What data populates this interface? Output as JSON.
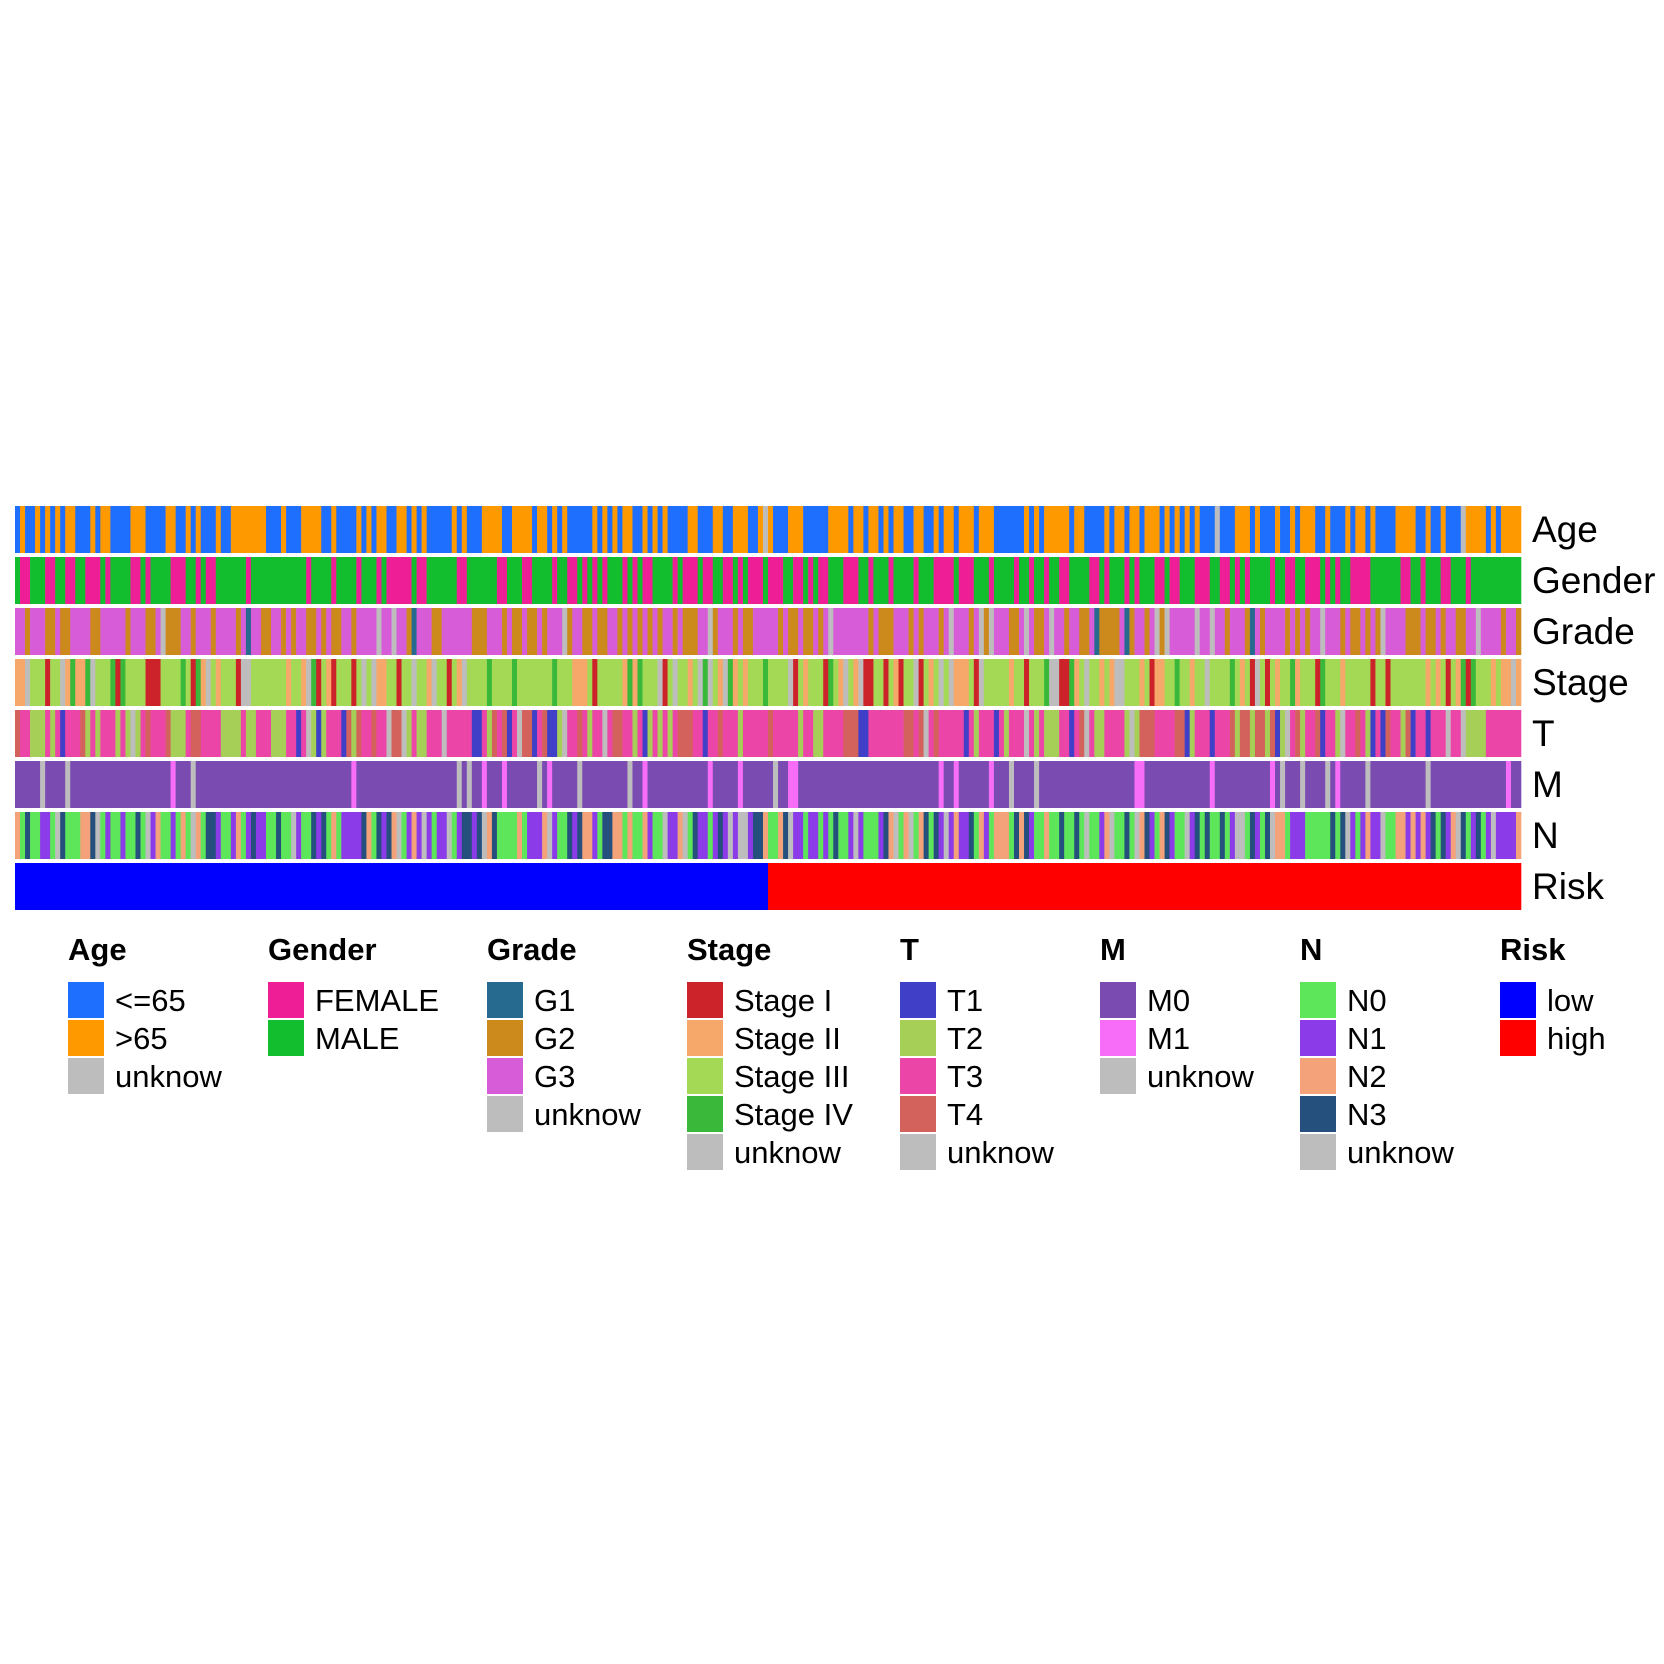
{
  "chart_data": {
    "type": "heatmap",
    "title": "",
    "n_samples": 300,
    "risk_split": {
      "low_count": 150,
      "high_count": 150
    },
    "tracks": [
      {
        "name": "Age",
        "levels": [
          "<=65",
          ">65",
          "unknow"
        ],
        "colors": [
          "#1f6fff",
          "#ff9900",
          "#bdbdbd"
        ],
        "weights": [
          0.5,
          0.49,
          0.01
        ]
      },
      {
        "name": "Gender",
        "levels": [
          "FEMALE",
          "MALE"
        ],
        "colors": [
          "#ee1f96",
          "#13be2e"
        ],
        "weights": [
          0.35,
          0.65
        ]
      },
      {
        "name": "Grade",
        "levels": [
          "G1",
          "G2",
          "G3",
          "unknow"
        ],
        "colors": [
          "#276a8f",
          "#cc8a1c",
          "#d75cd8",
          "#bdbdbd"
        ],
        "weights": [
          0.03,
          0.33,
          0.6,
          0.04
        ]
      },
      {
        "name": "Stage",
        "levels": [
          "Stage I",
          "Stage II",
          "Stage III",
          "Stage IV",
          "unknow"
        ],
        "colors": [
          "#cc2229",
          "#f5a86a",
          "#a4d955",
          "#3ab83a",
          "#bdbdbd"
        ],
        "weights": [
          0.12,
          0.15,
          0.55,
          0.08,
          0.1
        ]
      },
      {
        "name": "T",
        "levels": [
          "T1",
          "T2",
          "T3",
          "T4",
          "unknow"
        ],
        "colors": [
          "#3f3fc8",
          "#a5cf56",
          "#ec45a8",
          "#d4625c",
          "#bdbdbd"
        ],
        "weights": [
          0.06,
          0.18,
          0.55,
          0.16,
          0.05
        ]
      },
      {
        "name": "M",
        "levels": [
          "M0",
          "M1",
          "unknow"
        ],
        "colors": [
          "#7a4bb1",
          "#f76df7",
          "#bdbdbd"
        ],
        "weights": [
          0.88,
          0.05,
          0.07
        ]
      },
      {
        "name": "N",
        "levels": [
          "N0",
          "N1",
          "N2",
          "N3",
          "unknow"
        ],
        "colors": [
          "#5de659",
          "#8c3be8",
          "#f4a27a",
          "#25507e",
          "#bdbdbd"
        ],
        "weights": [
          0.35,
          0.25,
          0.15,
          0.15,
          0.1
        ]
      },
      {
        "name": "Risk",
        "levels": [
          "low",
          "high"
        ],
        "colors": [
          "#0000ff",
          "#ff0000"
        ],
        "weights": [
          0.5,
          0.5
        ]
      }
    ],
    "legend": [
      {
        "title": "Age",
        "items": [
          {
            "label": "<=65",
            "color": "#1f6fff"
          },
          {
            "label": ">65",
            "color": "#ff9900"
          },
          {
            "label": "unknow",
            "color": "#bdbdbd"
          }
        ]
      },
      {
        "title": "Gender",
        "items": [
          {
            "label": "FEMALE",
            "color": "#ee1f96"
          },
          {
            "label": "MALE",
            "color": "#13be2e"
          }
        ]
      },
      {
        "title": "Grade",
        "items": [
          {
            "label": "G1",
            "color": "#276a8f"
          },
          {
            "label": "G2",
            "color": "#cc8a1c"
          },
          {
            "label": "G3",
            "color": "#d75cd8"
          },
          {
            "label": "unknow",
            "color": "#bdbdbd"
          }
        ]
      },
      {
        "title": "Stage",
        "items": [
          {
            "label": "Stage I",
            "color": "#cc2229"
          },
          {
            "label": "Stage II",
            "color": "#f5a86a"
          },
          {
            "label": "Stage III",
            "color": "#a4d955"
          },
          {
            "label": "Stage IV",
            "color": "#3ab83a"
          },
          {
            "label": "unknow",
            "color": "#bdbdbd"
          }
        ]
      },
      {
        "title": "T",
        "items": [
          {
            "label": "T1",
            "color": "#3f3fc8"
          },
          {
            "label": "T2",
            "color": "#a5cf56"
          },
          {
            "label": "T3",
            "color": "#ec45a8"
          },
          {
            "label": "T4",
            "color": "#d4625c"
          },
          {
            "label": "unknow",
            "color": "#bdbdbd"
          }
        ]
      },
      {
        "title": "M",
        "items": [
          {
            "label": "M0",
            "color": "#7a4bb1"
          },
          {
            "label": "M1",
            "color": "#f76df7"
          },
          {
            "label": "unknow",
            "color": "#bdbdbd"
          }
        ]
      },
      {
        "title": "N",
        "items": [
          {
            "label": "N0",
            "color": "#5de659"
          },
          {
            "label": "N1",
            "color": "#8c3be8"
          },
          {
            "label": "N2",
            "color": "#f4a27a"
          },
          {
            "label": "N3",
            "color": "#25507e"
          },
          {
            "label": "unknow",
            "color": "#bdbdbd"
          }
        ]
      },
      {
        "title": "Risk",
        "items": [
          {
            "label": "low",
            "color": "#0000ff"
          },
          {
            "label": "high",
            "color": "#ff0000"
          }
        ]
      }
    ]
  }
}
